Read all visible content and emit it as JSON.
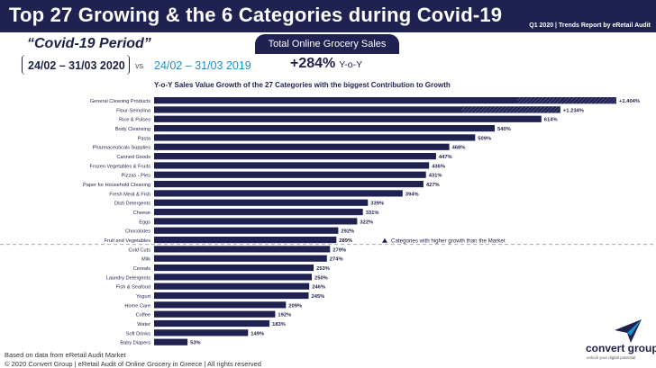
{
  "header": {
    "title": "Top 27 Growing & the 6 Categories during Covid-19",
    "report_tag": "Q1 2020 | Trends Report by eRetail Audit"
  },
  "period": {
    "title": "“Covid-19 Period”",
    "dates": "24/02 – 31/03 2020",
    "vs": "vs",
    "compare_dates": "24/02 – 31/03 2019"
  },
  "summary": {
    "label": "Total Online Grocery Sales",
    "growth_value": "+284%",
    "growth_unit": "Y-o-Y"
  },
  "legend": {
    "market_line_label": "Categories with higher growth than the Market"
  },
  "chart_data": {
    "type": "bar",
    "orientation": "horizontal",
    "title": "Y-o-Y Sales Value Growth of the 27 Categories with the biggest Contribution to Growth",
    "xlabel": "",
    "ylabel": "",
    "categories": [
      "General Cleaning Products",
      "Flour-Semolina",
      "Rice & Pulses",
      "Body Cleansing",
      "Pasta",
      "Pharmaceuticals Supplies",
      "Canned Goods",
      "Frozen Vegetables & Fruits",
      "Pizzas - Pies",
      "Paper for Household Cleaning",
      "Fresh Meat & Fish",
      "Dish Detergents",
      "Cheese",
      "Eggs",
      "Chocolates",
      "Fruit and Vegetables",
      "Cold Cuts",
      "Milk",
      "Cereals",
      "Laundry Detergents",
      "Fish & Seafood",
      "Yogurt",
      "Home Care",
      "Coffee",
      "Water",
      "Soft Drinks",
      "Baby Diapers"
    ],
    "values": [
      1404,
      1234,
      614,
      540,
      509,
      468,
      447,
      436,
      431,
      427,
      394,
      339,
      331,
      322,
      292,
      289,
      279,
      274,
      253,
      250,
      246,
      245,
      209,
      192,
      183,
      149,
      53
    ],
    "value_labels": [
      "+1.404%",
      "+1.234%",
      "614%",
      "540%",
      "509%",
      "468%",
      "447%",
      "436%",
      "431%",
      "427%",
      "394%",
      "339%",
      "331%",
      "322%",
      "292%",
      "289%",
      "279%",
      "274%",
      "253%",
      "250%",
      "246%",
      "245%",
      "209%",
      "192%",
      "183%",
      "149%",
      "53%"
    ],
    "market_growth": 284,
    "axis_break_categories": [
      "General Cleaning Products",
      "Flour-Semolina"
    ],
    "colors": {
      "bar": "#1f2150",
      "market_line": "#8a8a8a"
    }
  },
  "footer": {
    "source": "Based on data from eRetail Audit Market",
    "copyright": "© 2020 Convert Group | eRetail Audit of Online Grocery in Greece | All rights reserved"
  },
  "logo": {
    "name": "convert group",
    "tagline": "unlock your digital potential",
    "icon": "paper-plane-icon"
  }
}
